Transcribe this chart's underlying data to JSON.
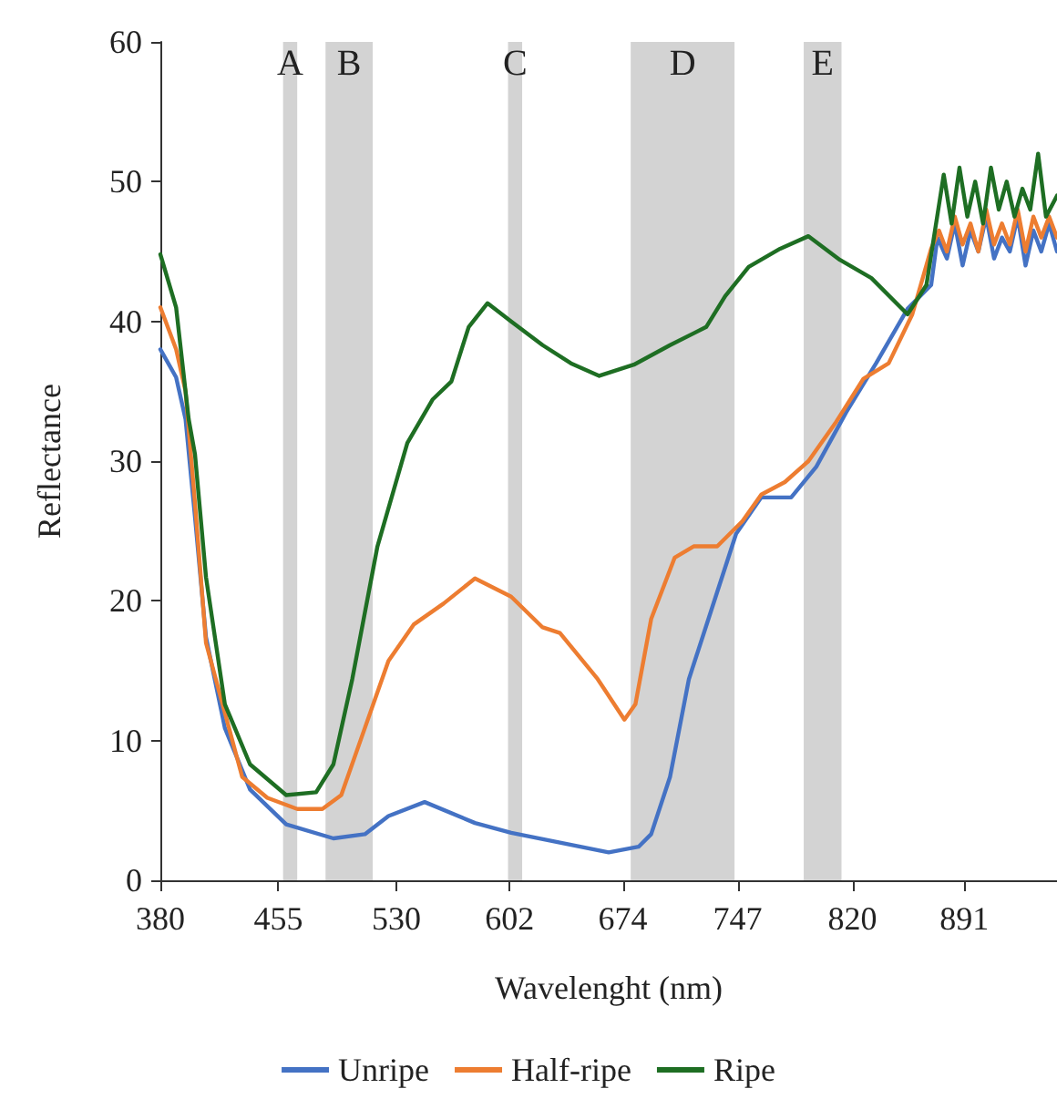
{
  "chart_data": {
    "type": "line",
    "xlabel": "Wavelenght (nm)",
    "ylabel": "Reflectance",
    "xlim": [
      380,
      950
    ],
    "xticks": [
      380,
      455,
      530,
      602,
      674,
      747,
      820,
      891
    ],
    "ylim": [
      0,
      60
    ],
    "yticks": [
      0,
      10,
      20,
      30,
      40,
      50,
      60
    ],
    "grid": false,
    "legend": "bottom",
    "marker": "none",
    "line_style": "solid",
    "bands": [
      {
        "axis": "x",
        "from": 458,
        "to": 467,
        "label": "A",
        "color": "#d3d3d3"
      },
      {
        "axis": "x",
        "from": 485,
        "to": 515,
        "label": "B",
        "color": "#d3d3d3"
      },
      {
        "axis": "x",
        "from": 601,
        "to": 610,
        "label": "C",
        "color": "#d3d3d3"
      },
      {
        "axis": "x",
        "from": 679,
        "to": 745,
        "label": "D",
        "color": "#d3d3d3"
      },
      {
        "axis": "x",
        "from": 789,
        "to": 813,
        "label": "E",
        "color": "#d3d3d3"
      }
    ],
    "series": [
      {
        "name": "Unripe",
        "color": "#4472c4",
        "x": [
          380,
          390,
          396,
          402,
          409,
          421,
          437,
          460,
          490,
          510,
          525,
          548,
          580,
          603,
          634,
          665,
          684,
          692,
          704,
          716,
          731,
          746,
          762,
          781,
          797,
          816,
          835,
          855,
          870,
          874,
          880,
          885,
          890,
          895,
          900,
          905,
          910,
          915,
          920,
          925,
          930,
          935,
          940,
          945,
          950
        ],
        "values": [
          38,
          36,
          33,
          26,
          17.4,
          10.9,
          6.5,
          4,
          3,
          3.3,
          4.6,
          5.6,
          4.1,
          3.4,
          2.7,
          2,
          2.4,
          3.3,
          7.4,
          14.4,
          19.6,
          24.8,
          27.4,
          27.4,
          29.6,
          33.5,
          37,
          40.9,
          42.6,
          46,
          44.5,
          47,
          44,
          46.5,
          45,
          47.5,
          44.5,
          46,
          45,
          47.5,
          44,
          46.5,
          45,
          47,
          45
        ]
      },
      {
        "name": "Half-ripe",
        "color": "#ed7d31",
        "x": [
          380,
          390,
          396,
          402,
          409,
          432,
          448,
          467,
          483,
          495,
          510,
          525,
          541,
          560,
          580,
          603,
          623,
          634,
          658,
          675,
          682,
          692,
          707,
          719,
          734,
          750,
          762,
          777,
          792,
          809,
          827,
          843,
          858,
          870,
          875,
          880,
          885,
          890,
          895,
          900,
          905,
          910,
          915,
          920,
          925,
          930,
          935,
          940,
          945,
          950
        ],
        "values": [
          41,
          38,
          35,
          27,
          17,
          7.4,
          5.9,
          5.1,
          5.1,
          6.1,
          10.9,
          15.7,
          18.3,
          19.8,
          21.6,
          20.3,
          18.1,
          17.7,
          14.4,
          11.5,
          12.6,
          18.7,
          23.1,
          23.9,
          23.9,
          25.7,
          27.6,
          28.5,
          30,
          32.7,
          35.9,
          37,
          40.5,
          45.2,
          46.5,
          45,
          47.5,
          45.5,
          47,
          45,
          48,
          45.5,
          47,
          45.5,
          48,
          45,
          47.5,
          46,
          47.5,
          46
        ]
      },
      {
        "name": "Ripe",
        "color": "#1e6e23",
        "x": [
          380,
          390,
          398,
          402,
          409,
          421,
          437,
          460,
          479,
          490,
          502,
          518,
          537,
          553,
          565,
          576,
          588,
          603,
          623,
          641,
          659,
          681,
          704,
          727,
          739,
          754,
          774,
          792,
          812,
          832,
          855,
          867,
          878,
          883,
          888,
          893,
          898,
          903,
          908,
          913,
          918,
          923,
          928,
          933,
          938,
          943,
          950
        ],
        "values": [
          44.8,
          41,
          33,
          30.5,
          21.7,
          12.6,
          8.3,
          6.1,
          6.3,
          8.3,
          14.4,
          23.9,
          31.3,
          34.4,
          35.7,
          39.6,
          41.3,
          40,
          38.3,
          37,
          36.1,
          36.9,
          38.3,
          39.6,
          41.8,
          43.9,
          45.2,
          46.1,
          44.4,
          43.1,
          40.5,
          42.6,
          50.5,
          47,
          51,
          47.5,
          50,
          47,
          51,
          48,
          50,
          47.5,
          49.5,
          48,
          52,
          47.5,
          49
        ]
      }
    ]
  }
}
